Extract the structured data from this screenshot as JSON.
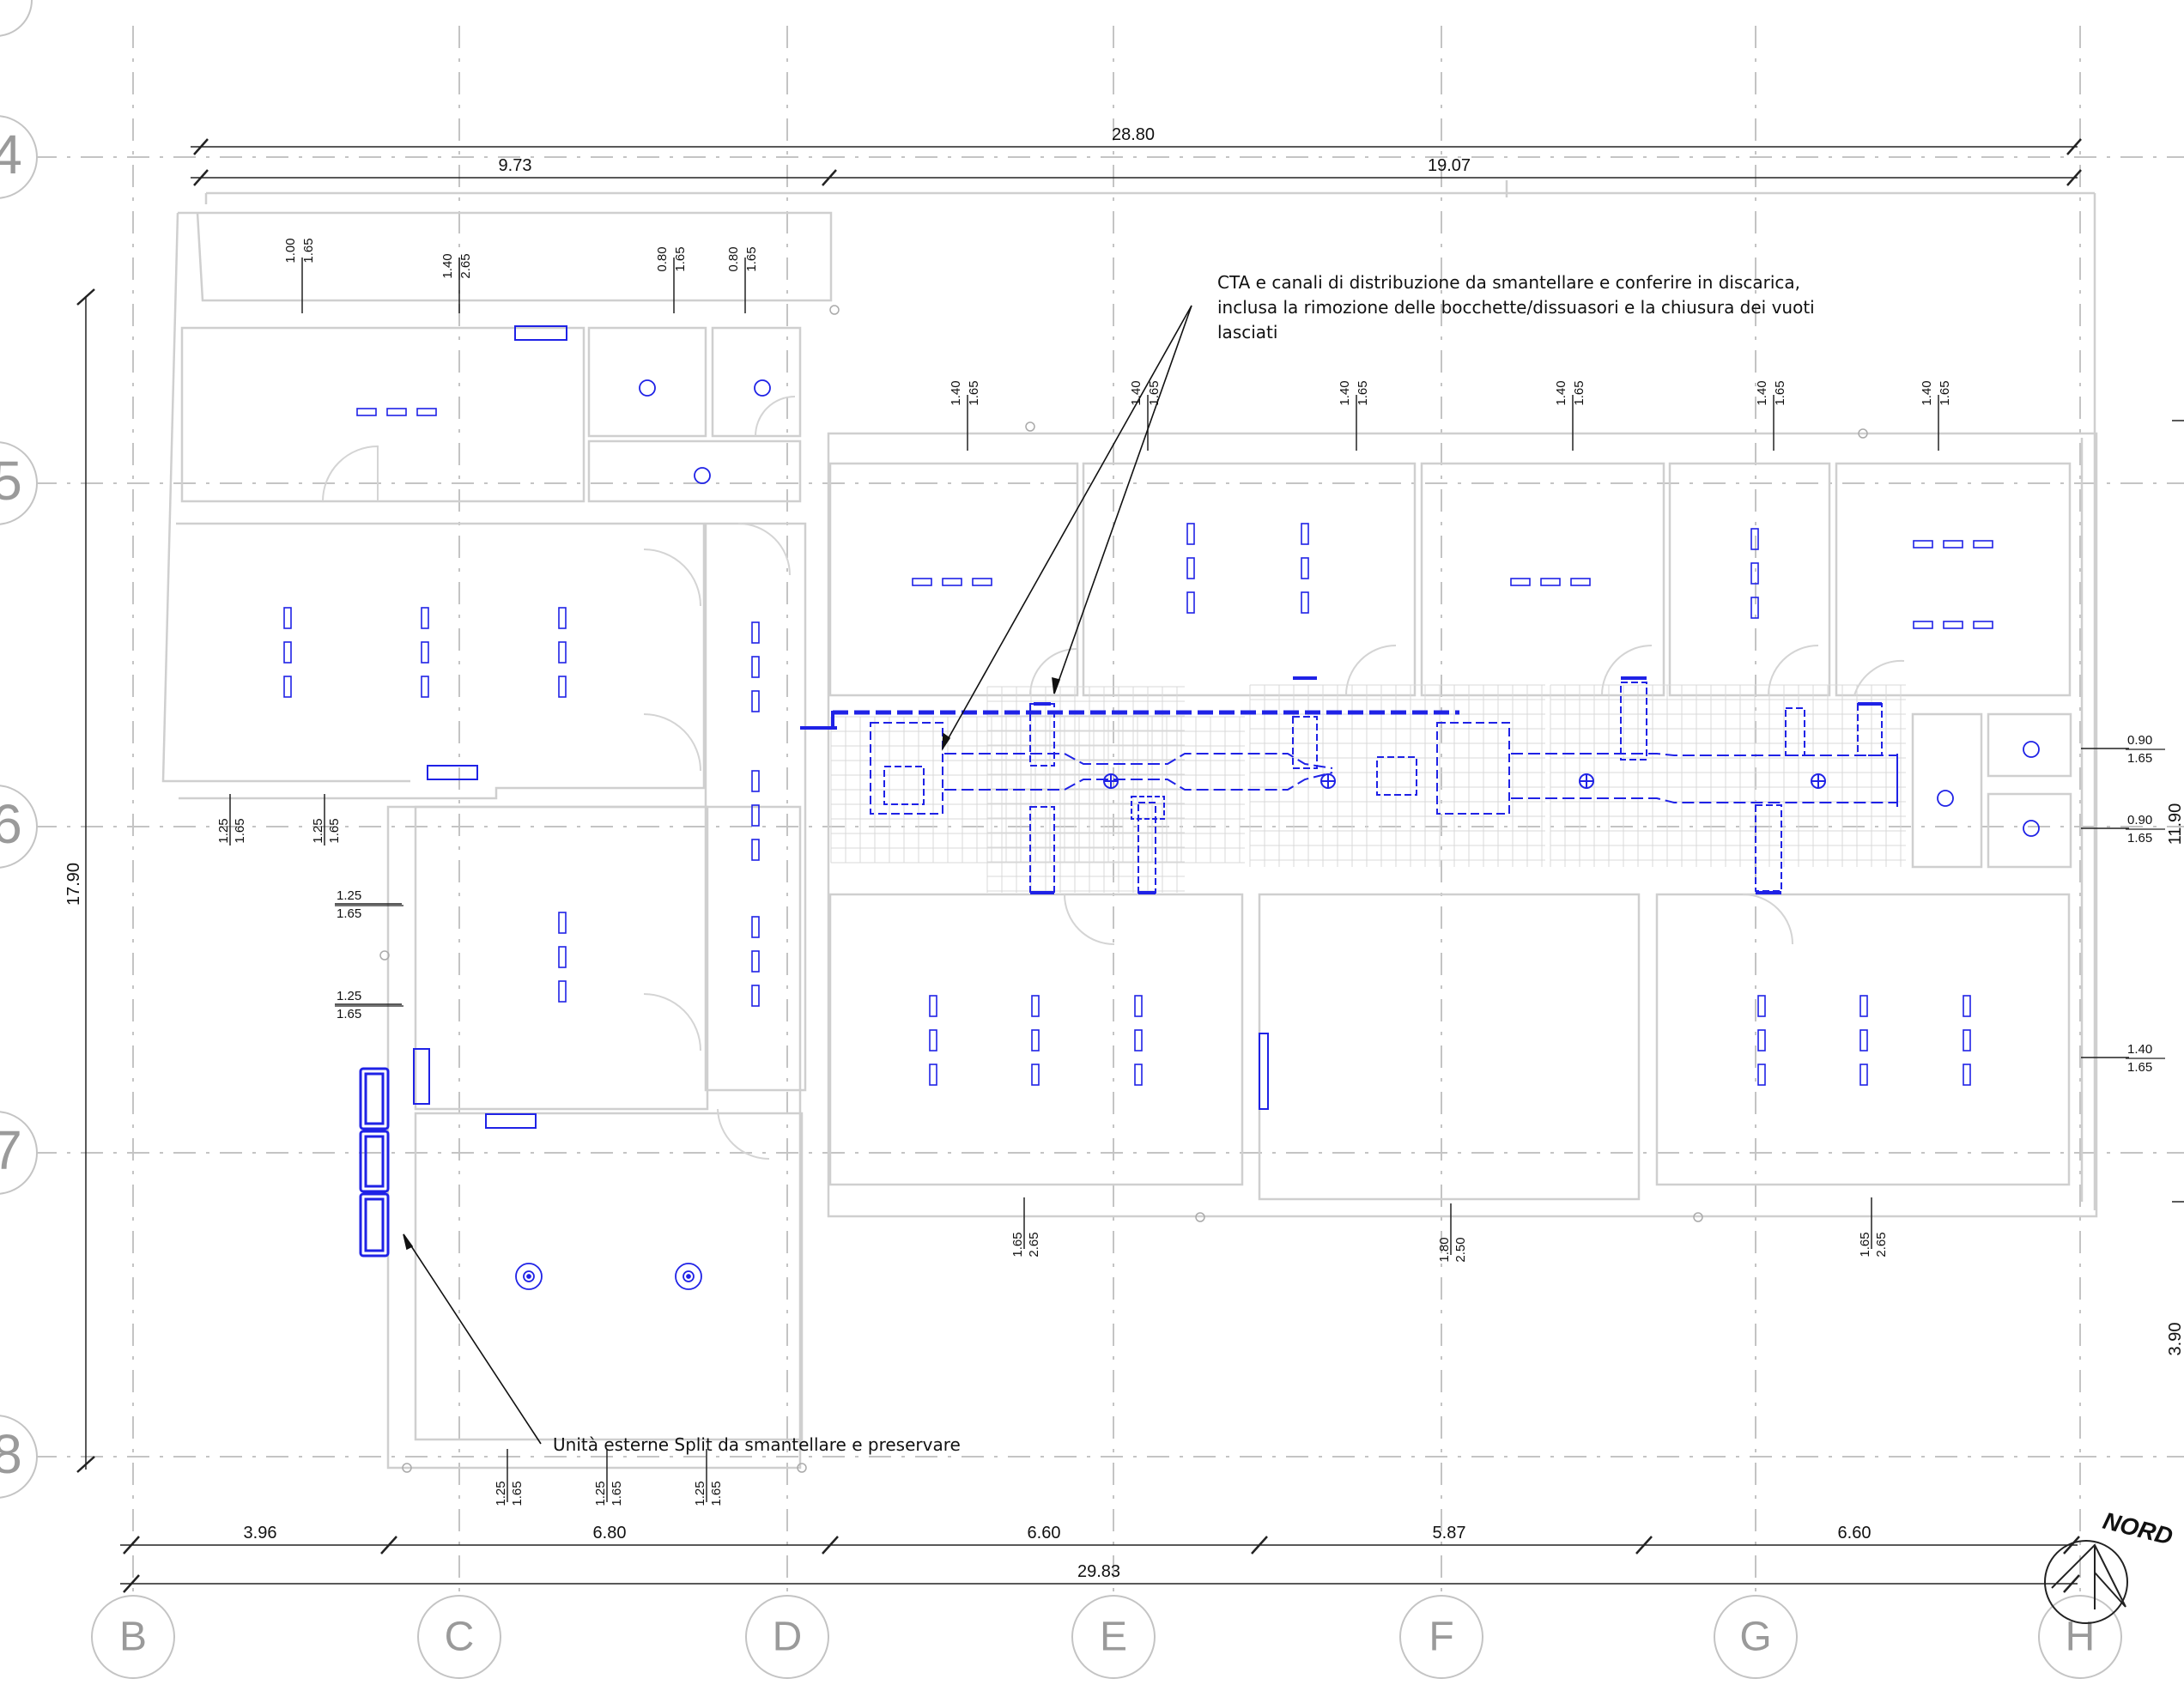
{
  "overall_dimensions": {
    "top_total": "28.80",
    "top_left": "9.73",
    "top_right": "19.07",
    "left_height": "17.90",
    "right_upper": "11.90",
    "right_lower": "3.90",
    "bottom_total": "29.83",
    "bottom_segments": [
      "3.96",
      "6.80",
      "6.60",
      "5.87",
      "6.60"
    ]
  },
  "grid_columns": [
    "B",
    "C",
    "D",
    "E",
    "F",
    "G",
    "H"
  ],
  "grid_rows_visible": [
    "4",
    "5",
    "6",
    "7",
    "8"
  ],
  "window_tags": {
    "top_rooms": [
      {
        "w": "1.00",
        "h": "1.65"
      },
      {
        "w": "1.40",
        "h": "2.65"
      },
      {
        "w": "0.80",
        "h": "1.65"
      },
      {
        "w": "0.80",
        "h": "1.65"
      }
    ],
    "upper_rooms": [
      {
        "w": "1.40",
        "h": "1.65"
      },
      {
        "w": "1.40",
        "h": "1.65"
      },
      {
        "w": "1.40",
        "h": "1.65"
      },
      {
        "w": "1.40",
        "h": "1.65"
      },
      {
        "w": "1.40",
        "h": "1.65"
      },
      {
        "w": "1.40",
        "h": "1.65"
      }
    ],
    "left_side": [
      {
        "w": "1.25",
        "h": "1.65"
      },
      {
        "w": "1.25",
        "h": "1.65"
      },
      {
        "w": "1.25",
        "h": "1.65"
      },
      {
        "w": "1.25",
        "h": "1.65"
      }
    ],
    "right_side": [
      {
        "w": "0.90",
        "h": "1.65"
      },
      {
        "w": "0.90",
        "h": "1.65"
      },
      {
        "w": "1.40",
        "h": "1.65"
      }
    ],
    "lower_rooms": [
      {
        "w": "1.65",
        "h": "2.65"
      },
      {
        "w": "1.80",
        "h": "2.50"
      },
      {
        "w": "1.65",
        "h": "2.65"
      }
    ],
    "bottom_side": [
      {
        "w": "1.25",
        "h": "1.65"
      },
      {
        "w": "1.25",
        "h": "1.65"
      },
      {
        "w": "1.25",
        "h": "1.65"
      }
    ]
  },
  "annotations": {
    "cta_line1": "CTA e canali di distribuzione da smantellare e conferire in discarica,",
    "cta_line2": "inclusa la rimozione delle bocchette/dissuasori e la chiusura dei vuoti",
    "cta_line3": "lasciati",
    "split_note": "Unità esterne Split da smantellare e preservare"
  },
  "north_label": "NORD",
  "colors": {
    "walls": "#cfcfcf",
    "grid": "#bdbdbd",
    "hvac": "#1f22e6",
    "text": "#111111"
  }
}
